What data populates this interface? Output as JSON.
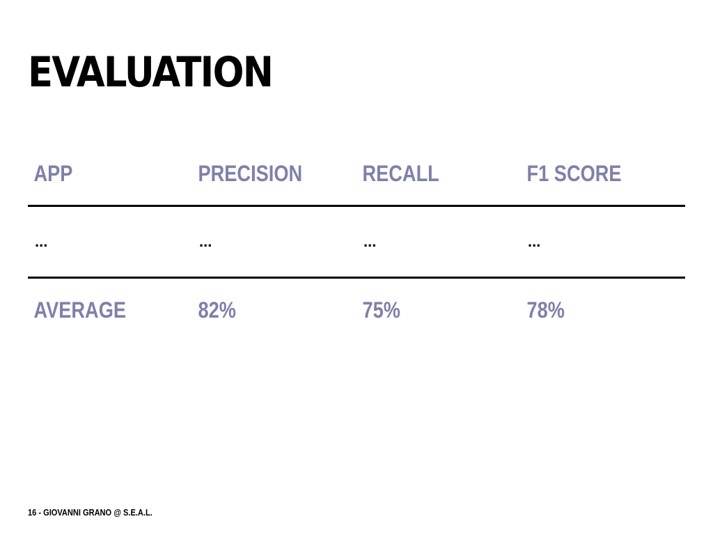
{
  "slide": {
    "title": "EVALUATION",
    "footer": "16 - GIOVANNI GRANO @ S.E.A.L."
  },
  "table": {
    "headers": [
      "APP",
      "PRECISION",
      "RECALL",
      "F1 SCORE"
    ],
    "rows": [
      [
        "...",
        "...",
        "...",
        "..."
      ]
    ],
    "average": [
      "AVERAGE",
      "82%",
      "75%",
      "78%"
    ]
  },
  "colors": {
    "text_accent": "#7f7fae",
    "title": "#000000",
    "rule": "#000000",
    "background": "#ffffff"
  }
}
